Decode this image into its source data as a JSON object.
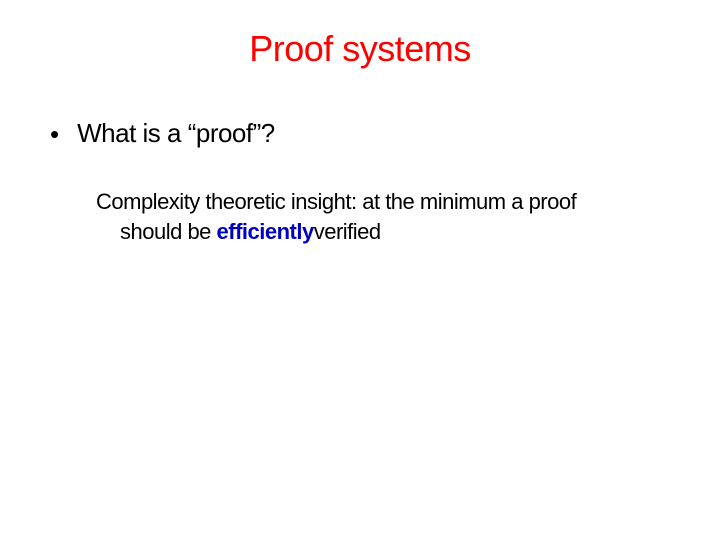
{
  "slide": {
    "title": "Proof systems",
    "title_color": "#ff0000",
    "title_fontsize": 36,
    "bullet": {
      "marker": "•",
      "text": "What is a “proof”?",
      "text_color": "#000000",
      "fontsize": 26
    },
    "body": {
      "line1": "Complexity theoretic insight: at the minimum a proof",
      "line2_prefix": "should  be ",
      "line2_emph": "efficiently",
      "line2_suffix": "verified",
      "emph_color": "#0000c0",
      "text_color": "#000000",
      "fontsize": 22
    },
    "background_color": "#ffffff"
  }
}
